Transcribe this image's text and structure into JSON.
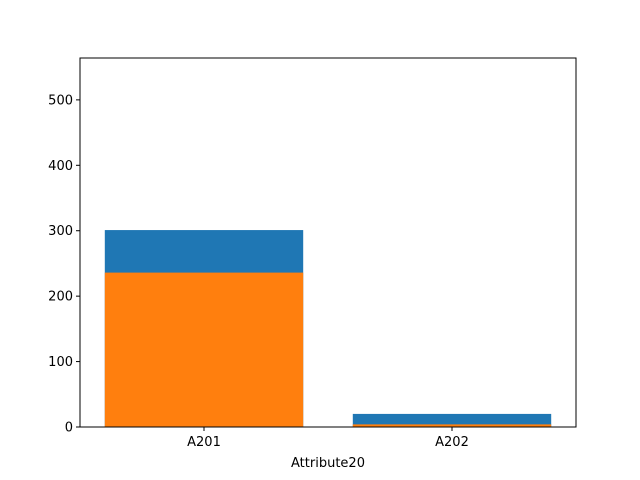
{
  "chart_data": {
    "type": "bar",
    "stacked": true,
    "xlabel": "Attribute20",
    "ylabel": "",
    "title": "",
    "categories": [
      "A201",
      "A202"
    ],
    "series": [
      {
        "values": [
          301,
          20
        ],
        "color": "#1f77b4"
      },
      {
        "values": [
          236,
          4
        ],
        "color": "#ff7f0e"
      }
    ],
    "ylim": [
      0,
      564
    ],
    "yticks": [
      0,
      100,
      200,
      300,
      400,
      500
    ],
    "ytick_labels": [
      "0",
      "100",
      "200",
      "300",
      "400",
      "500"
    ],
    "grid": false,
    "legend": "none"
  }
}
